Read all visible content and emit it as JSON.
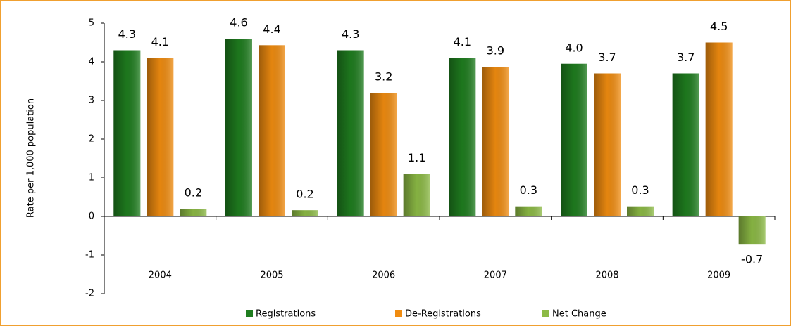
{
  "chart_data": {
    "type": "bar",
    "y_label": "Rate per 1,000 population",
    "categories": [
      "2004",
      "2005",
      "2006",
      "2007",
      "2008",
      "2009"
    ],
    "series": [
      {
        "name": "Registrations",
        "color": "#1f7d1f",
        "values": [
          4.3,
          4.6,
          4.3,
          4.1,
          3.95,
          3.7
        ],
        "value_labels": [
          "4.3",
          "4.6",
          "4.3",
          "4.1",
          "4.0",
          "3.7"
        ]
      },
      {
        "name": "De-Registrations",
        "color": "#f08c10",
        "values": [
          4.1,
          4.43,
          3.2,
          3.87,
          3.7,
          4.5
        ],
        "value_labels": [
          "4.1",
          "4.4",
          "3.2",
          "3.9",
          "3.7",
          "4.5"
        ]
      },
      {
        "name": "Net Change",
        "color": "#8cba45",
        "values": [
          0.2,
          0.16,
          1.1,
          0.26,
          0.26,
          -0.73
        ],
        "value_labels": [
          "0.2",
          "0.2",
          "1.1",
          "0.3",
          "0.3",
          "-0.7"
        ]
      }
    ],
    "ylim": [
      -2,
      5
    ],
    "yticks": [
      -2,
      -1,
      0,
      1,
      2,
      3,
      4,
      5
    ],
    "legend": "bottom"
  }
}
